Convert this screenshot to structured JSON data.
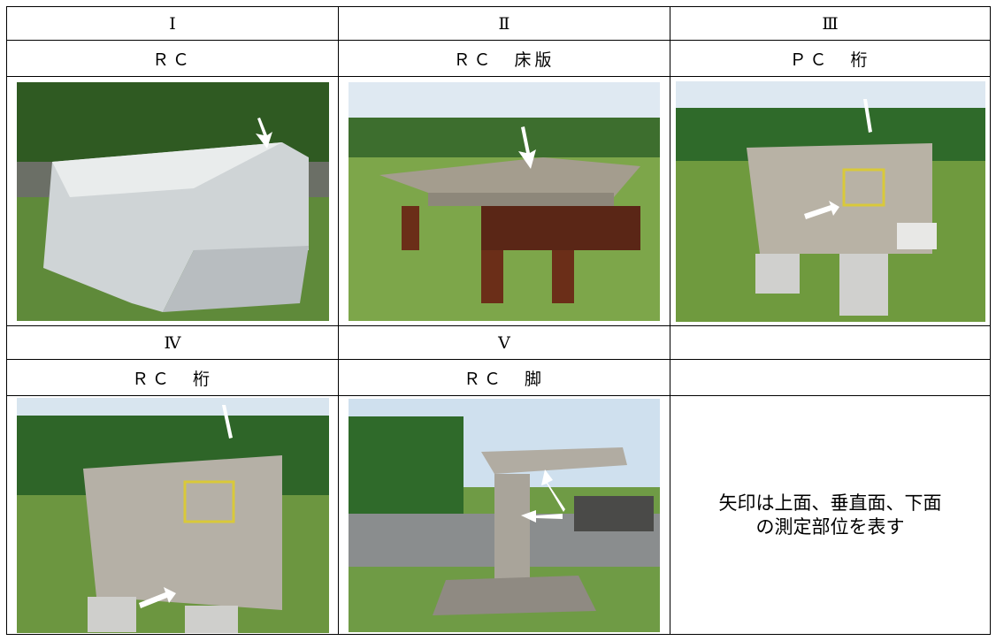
{
  "table": {
    "rows": [
      [
        "Ⅰ",
        "Ⅱ",
        "Ⅲ"
      ],
      [
        "ＲＣ",
        "ＲＣ　床版",
        "ＰＣ　桁"
      ],
      [
        "Ⅳ",
        "Ⅴ"
      ],
      [
        "ＲＣ　桁",
        "ＲＣ　脚"
      ]
    ],
    "note": [
      "矢印は上面、垂直面、下面",
      "の測定部位を表す"
    ]
  }
}
